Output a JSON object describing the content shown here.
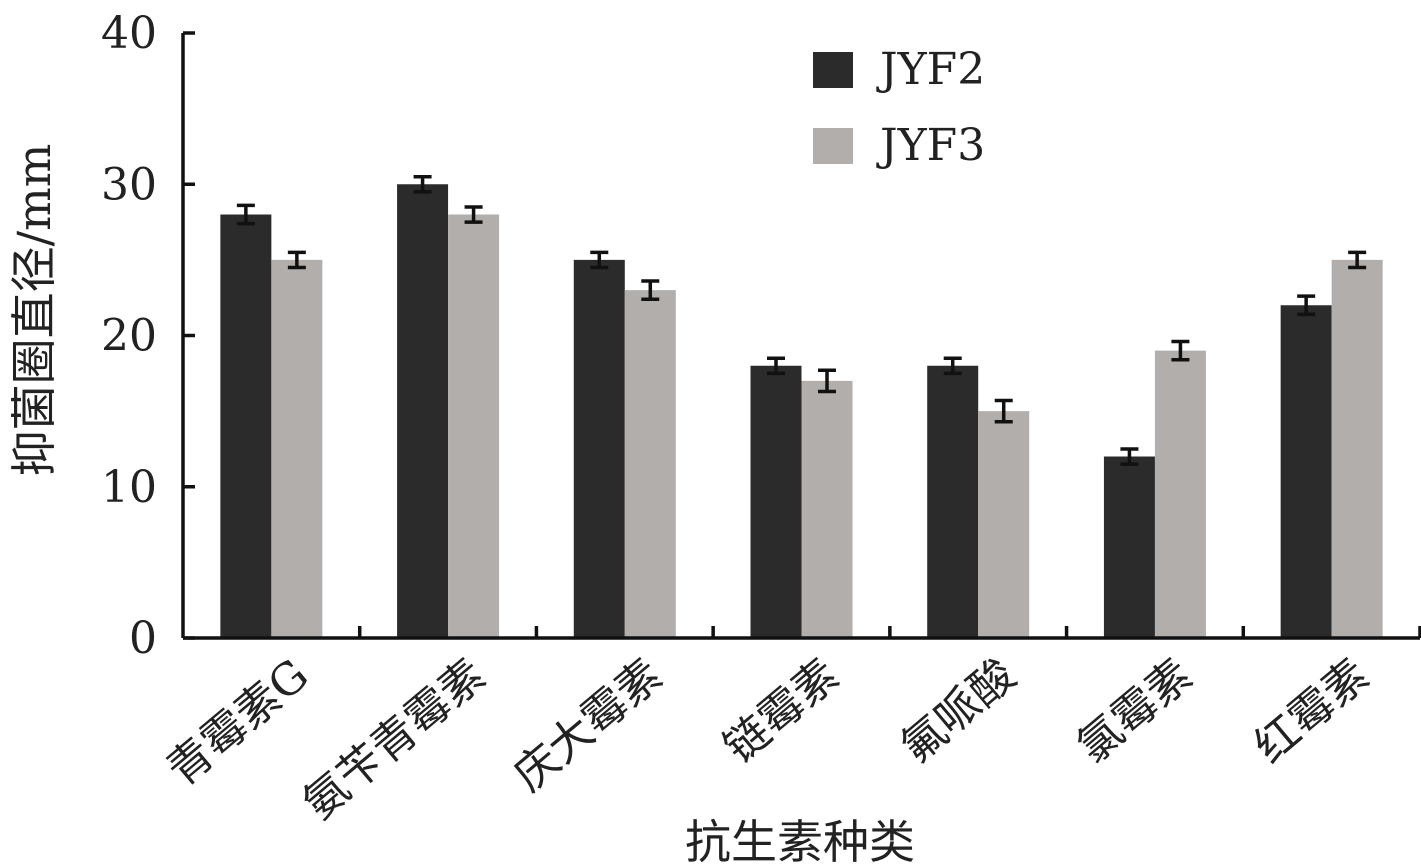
{
  "chart_data": {
    "type": "bar",
    "title": "",
    "xlabel": "抗生素种类",
    "ylabel": "抑菌圈直径/mm",
    "ylim": [
      0,
      40
    ],
    "yticks": [
      0,
      10,
      20,
      30,
      40
    ],
    "categories": [
      "青霉素G",
      "氨苄青霉素",
      "庆大霉素",
      "链霉素",
      "氟哌酸",
      "氯霉素",
      "红霉素"
    ],
    "series": [
      {
        "name": "JYF2",
        "color": "#2b2b2b",
        "values": [
          28,
          30,
          25,
          18,
          18,
          12,
          22
        ],
        "errors": [
          0.6,
          0.5,
          0.5,
          0.5,
          0.5,
          0.5,
          0.6
        ]
      },
      {
        "name": "JYF3",
        "color": "#b2aeab",
        "values": [
          25,
          28,
          23,
          17,
          15,
          19,
          25
        ],
        "errors": [
          0.5,
          0.5,
          0.6,
          0.7,
          0.7,
          0.6,
          0.5
        ]
      }
    ],
    "legend_position": "top-right",
    "grid": false
  }
}
